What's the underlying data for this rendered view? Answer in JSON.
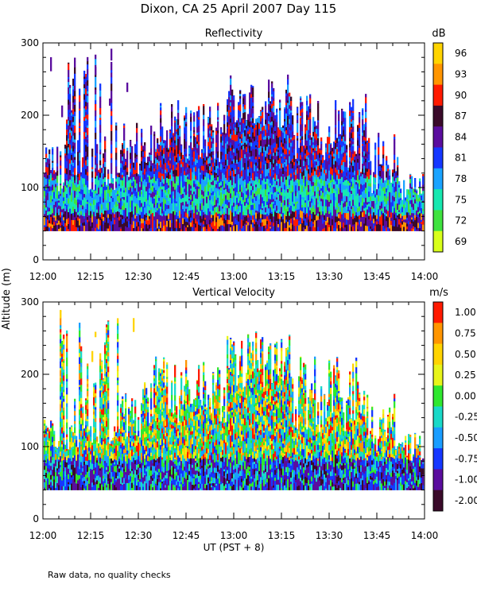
{
  "title": "Dixon, CA 25 April 2007  Day 115",
  "shared_ylabel": "Altitude (m)",
  "xlabel": "UT  (PST + 8)",
  "footnote": "Raw data, no quality checks",
  "chart_data": [
    {
      "type": "heatmap",
      "title": "Reflectivity",
      "xlabel": "UT  (PST + 8)",
      "ylabel": "Altitude (m)",
      "x_range": [
        "12:00",
        "14:00"
      ],
      "x_ticks": [
        "12:00",
        "12:15",
        "12:30",
        "12:45",
        "13:00",
        "13:15",
        "13:30",
        "13:45",
        "14:00"
      ],
      "ylim": [
        0,
        300
      ],
      "y_ticks": [
        "0",
        "100",
        "200",
        "300"
      ],
      "data_min_altitude": 40,
      "colorbar": {
        "unit": "dB",
        "labels": [
          "96",
          "93",
          "90",
          "87",
          "84",
          "81",
          "78",
          "75",
          "72",
          "69"
        ],
        "colors": [
          "#ffd400",
          "#ff9500",
          "#ff1a00",
          "#3a0a2a",
          "#5a0d9e",
          "#1537ff",
          "#1aa3ff",
          "#17e8b0",
          "#3fe33f",
          "#d9ff1a"
        ]
      }
    },
    {
      "type": "heatmap",
      "title": "Vertical Velocity",
      "xlabel": "UT  (PST + 8)",
      "ylabel": "Altitude (m)",
      "x_range": [
        "12:00",
        "14:00"
      ],
      "x_ticks": [
        "12:00",
        "12:15",
        "12:30",
        "12:45",
        "13:00",
        "13:15",
        "13:30",
        "13:45",
        "14:00"
      ],
      "ylim": [
        0,
        300
      ],
      "y_ticks": [
        "0",
        "100",
        "200",
        "300"
      ],
      "data_min_altitude": 40,
      "colorbar": {
        "unit": "m/s",
        "labels": [
          "1.00",
          "0.75",
          "0.50",
          "0.25",
          "0.00",
          "-0.25",
          "-0.50",
          "-0.75",
          "-1.00",
          "-2.00"
        ],
        "colors": [
          "#ff1a00",
          "#ff9500",
          "#ffd400",
          "#e8f51a",
          "#2fe82f",
          "#19d9c8",
          "#1a9dff",
          "#1537ff",
          "#5a0d9e",
          "#3a0a2a"
        ]
      }
    }
  ]
}
